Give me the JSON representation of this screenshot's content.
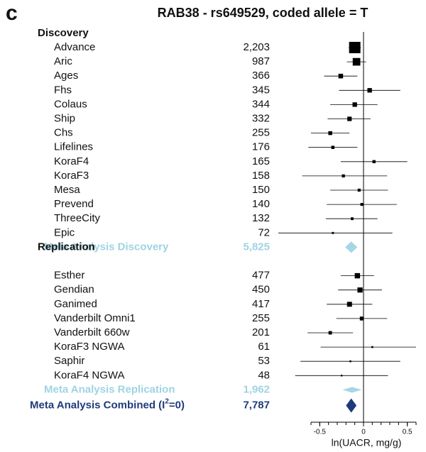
{
  "panel_label": "c",
  "colors": {
    "study": "#000000",
    "meta_subgroup": "#a6d6e6",
    "meta_combined": "#1f3a7a"
  },
  "chart_data": {
    "type": "forest",
    "title": "RAB38 - rs649529, coded allele = T",
    "xlabel": "ln(UACR, mg/g)",
    "xlim": [
      -0.6,
      0.6
    ],
    "xticks": [
      -0.5,
      0,
      0.5
    ],
    "xtick_labels": [
      "-0.5",
      "0",
      "0.5"
    ],
    "groups": [
      {
        "heading": "Discovery",
        "studies": [
          {
            "name": "Advance",
            "n": "2,203",
            "est": -0.1,
            "lo": -0.17,
            "hi": -0.03
          },
          {
            "name": "Aric",
            "n": "987",
            "est": -0.08,
            "lo": -0.19,
            "hi": 0.03
          },
          {
            "name": "Ages",
            "n": "366",
            "est": -0.26,
            "lo": -0.45,
            "hi": -0.07
          },
          {
            "name": "Fhs",
            "n": "345",
            "est": 0.07,
            "lo": -0.28,
            "hi": 0.42
          },
          {
            "name": "Colaus",
            "n": "344",
            "est": -0.1,
            "lo": -0.38,
            "hi": 0.16
          },
          {
            "name": "Ship",
            "n": "332",
            "est": -0.16,
            "lo": -0.41,
            "hi": 0.08
          },
          {
            "name": "Chs",
            "n": "255",
            "est": -0.38,
            "lo": -0.6,
            "hi": -0.16
          },
          {
            "name": "Lifelines",
            "n": "176",
            "est": -0.35,
            "lo": -0.63,
            "hi": -0.07
          },
          {
            "name": "KoraF4",
            "n": "165",
            "est": 0.12,
            "lo": -0.26,
            "hi": 0.5
          },
          {
            "name": "KoraF3",
            "n": "158",
            "est": -0.23,
            "lo": -0.7,
            "hi": 0.27
          },
          {
            "name": "Mesa",
            "n": "150",
            "est": -0.05,
            "lo": -0.38,
            "hi": 0.28
          },
          {
            "name": "Prevend",
            "n": "140",
            "est": -0.02,
            "lo": -0.42,
            "hi": 0.38
          },
          {
            "name": "ThreeCity",
            "n": "132",
            "est": -0.13,
            "lo": -0.43,
            "hi": 0.16
          },
          {
            "name": "Epic",
            "n": "72",
            "est": -0.35,
            "lo": -1.03,
            "hi": 0.33
          }
        ],
        "meta": {
          "name": "Meta Analysis Discovery",
          "n": "5,825",
          "est": -0.14,
          "lo": -0.21,
          "hi": -0.07,
          "style": "light"
        }
      },
      {
        "heading": "Replication",
        "studies": [
          {
            "name": "Esther",
            "n": "477",
            "est": -0.07,
            "lo": -0.26,
            "hi": 0.12
          },
          {
            "name": "Gendian",
            "n": "450",
            "est": -0.04,
            "lo": -0.29,
            "hi": 0.21
          },
          {
            "name": "Ganimed",
            "n": "417",
            "est": -0.16,
            "lo": -0.42,
            "hi": 0.1
          },
          {
            "name": "Vanderbilt Omni1",
            "n": "255",
            "est": -0.02,
            "lo": -0.31,
            "hi": 0.27
          },
          {
            "name": "Vanderbilt 660w",
            "n": "201",
            "est": -0.38,
            "lo": -0.64,
            "hi": -0.12
          },
          {
            "name": "KoraF3 NGWA",
            "n": "61",
            "est": 0.1,
            "lo": -0.49,
            "hi": 0.69
          },
          {
            "name": "Saphir",
            "n": "53",
            "est": -0.15,
            "lo": -0.72,
            "hi": 0.42
          },
          {
            "name": "KoraF4 NGWA",
            "n": "48",
            "est": -0.25,
            "lo": -0.78,
            "hi": 0.28
          }
        ],
        "meta": {
          "name": "Meta Analysis Replication",
          "n": "1,962",
          "est": -0.13,
          "lo": -0.24,
          "hi": -0.02,
          "style": "light"
        }
      }
    ],
    "combined": {
      "name_prefix": "Meta Analysis Combined (I",
      "name_sup": "2",
      "name_suffix": "=0)",
      "n": "7,787",
      "est": -0.14,
      "lo": -0.2,
      "hi": -0.08,
      "style": "dark"
    }
  }
}
